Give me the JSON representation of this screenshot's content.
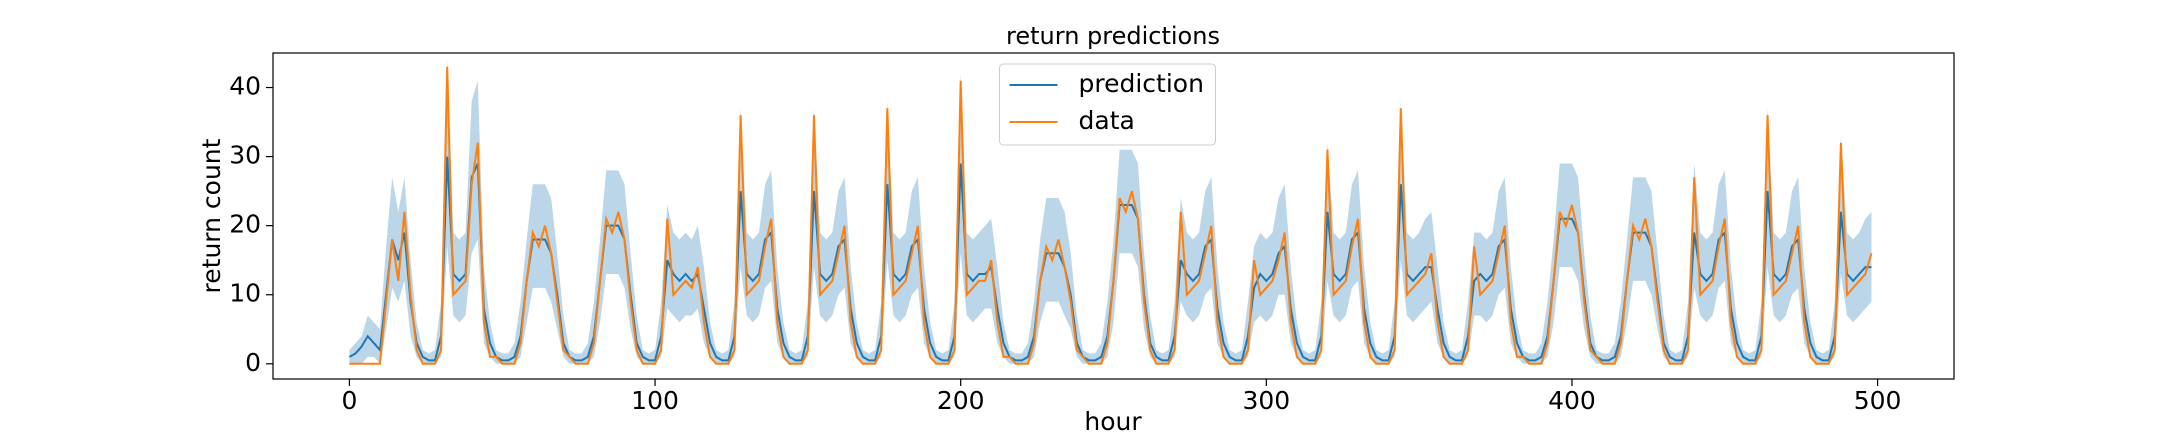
{
  "chart_data": {
    "type": "line",
    "title": "return predictions",
    "xlabel": "hour",
    "ylabel": "return count",
    "xlim": [
      -25,
      525
    ],
    "ylim": [
      -2.2,
      45
    ],
    "xticks": [
      0,
      100,
      200,
      300,
      400,
      500
    ],
    "yticks": [
      0,
      10,
      20,
      30,
      40
    ],
    "grid": false,
    "legend": "upper center",
    "x": [
      0,
      2,
      4,
      6,
      8,
      10,
      12,
      14,
      16,
      18,
      20,
      22,
      24,
      26,
      28,
      30,
      32,
      34,
      36,
      38,
      40,
      42,
      44,
      46,
      48,
      50,
      52,
      54,
      56,
      58,
      60,
      62,
      64,
      66,
      68,
      70,
      72,
      74,
      76,
      78,
      80,
      82,
      84,
      86,
      88,
      90,
      92,
      94,
      96,
      98,
      100,
      102,
      104,
      106,
      108,
      110,
      112,
      114,
      116,
      118,
      120,
      122,
      124,
      126,
      128,
      130,
      132,
      134,
      136,
      138,
      140,
      142,
      144,
      146,
      148,
      150,
      152,
      154,
      156,
      158,
      160,
      162,
      164,
      166,
      168,
      170,
      172,
      174,
      176,
      178,
      180,
      182,
      184,
      186,
      188,
      190,
      192,
      194,
      196,
      198,
      200,
      202,
      204,
      206,
      208,
      210,
      212,
      214,
      216,
      218,
      220,
      222,
      224,
      226,
      228,
      230,
      232,
      234,
      236,
      238,
      240,
      242,
      244,
      246,
      248,
      250,
      252,
      254,
      256,
      258,
      260,
      262,
      264,
      266,
      268,
      270,
      272,
      274,
      276,
      278,
      280,
      282,
      284,
      286,
      288,
      290,
      292,
      294,
      296,
      298,
      300,
      302,
      304,
      306,
      308,
      310,
      312,
      314,
      316,
      318,
      320,
      322,
      324,
      326,
      328,
      330,
      332,
      334,
      336,
      338,
      340,
      342,
      344,
      346,
      348,
      350,
      352,
      354,
      356,
      358,
      360,
      362,
      364,
      366,
      368,
      370,
      372,
      374,
      376,
      378,
      380,
      382,
      384,
      386,
      388,
      390,
      392,
      394,
      396,
      398,
      400,
      402,
      404,
      406,
      408,
      410,
      412,
      414,
      416,
      418,
      420,
      422,
      424,
      426,
      428,
      430,
      432,
      434,
      436,
      438,
      440,
      442,
      444,
      446,
      448,
      450,
      452,
      454,
      456,
      458,
      460,
      462,
      464,
      466,
      468,
      470,
      472,
      474,
      476,
      478,
      480,
      482,
      484,
      486,
      488,
      490,
      492,
      494,
      496,
      498
    ],
    "series": [
      {
        "name": "prediction",
        "color": "#1f77b4",
        "values": [
          1,
          1.5,
          2.5,
          4,
          3,
          2,
          10,
          18,
          15,
          19,
          9,
          3,
          1,
          0.5,
          0.5,
          4,
          30,
          13,
          12,
          13,
          27,
          29,
          8,
          3,
          1,
          0.5,
          0.5,
          1,
          4,
          12,
          18,
          18,
          18,
          16,
          10,
          3,
          1,
          0.5,
          0.5,
          1,
          4,
          12,
          20,
          20,
          20,
          18,
          10,
          3,
          1,
          0.5,
          0.5,
          4,
          15,
          13,
          12,
          13,
          12,
          13,
          8,
          3,
          1,
          0.5,
          0.5,
          4,
          25,
          13,
          12,
          13,
          18,
          19,
          8,
          3,
          1,
          0.5,
          0.5,
          4,
          25,
          13,
          12,
          13,
          17,
          18,
          8,
          3,
          1,
          0.5,
          0.5,
          4,
          26,
          13,
          12,
          13,
          17,
          18,
          8,
          3,
          1,
          0.5,
          0.5,
          4,
          29,
          13,
          12,
          13,
          13,
          14,
          8,
          3,
          1,
          0.5,
          0.5,
          1,
          4,
          12,
          16,
          16,
          16,
          14,
          10,
          3,
          1,
          0.5,
          0.5,
          1,
          4,
          12,
          23,
          23,
          23,
          21,
          10,
          3,
          1,
          0.5,
          0.5,
          4,
          15,
          13,
          12,
          13,
          17,
          18,
          8,
          3,
          1,
          0.5,
          0.5,
          4,
          11,
          13,
          12,
          13,
          16,
          17,
          8,
          3,
          1,
          0.5,
          0.5,
          4,
          22,
          13,
          12,
          13,
          18,
          19,
          8,
          3,
          1,
          0.5,
          0.5,
          4,
          26,
          13,
          12,
          13,
          14,
          14,
          8,
          3,
          1,
          0.5,
          0.5,
          4,
          12,
          13,
          12,
          13,
          17,
          18,
          8,
          3,
          1,
          0.5,
          0.5,
          1,
          4,
          12,
          21,
          21,
          21,
          19,
          10,
          3,
          1,
          0.5,
          0.5,
          1,
          4,
          12,
          19,
          19,
          19,
          17,
          10,
          3,
          1,
          0.5,
          0.5,
          4,
          19,
          13,
          12,
          13,
          18,
          19,
          8,
          3,
          1,
          0.5,
          0.5,
          4,
          25,
          13,
          12,
          13,
          17,
          18,
          8,
          3,
          1,
          0.5,
          0.5,
          4,
          22,
          13,
          12,
          13,
          14,
          14
        ],
        "band": {
          "color": "#1f77b4",
          "lower": [
            0,
            0,
            0,
            1,
            1,
            0,
            5,
            11,
            9,
            12,
            4,
            1,
            0,
            0,
            0,
            1,
            17,
            7,
            6,
            7,
            16,
            18,
            3,
            1,
            0,
            0,
            0,
            0,
            1,
            6,
            11,
            11,
            11,
            9,
            5,
            1,
            0,
            0,
            0,
            0,
            1,
            6,
            13,
            13,
            13,
            11,
            5,
            1,
            0,
            0,
            0,
            1,
            8,
            7,
            6,
            7,
            7,
            8,
            3,
            1,
            0,
            0,
            0,
            1,
            14,
            7,
            6,
            7,
            11,
            12,
            3,
            1,
            0,
            0,
            0,
            1,
            14,
            7,
            6,
            7,
            10,
            11,
            3,
            1,
            0,
            0,
            0,
            1,
            15,
            7,
            6,
            7,
            10,
            11,
            3,
            1,
            0,
            0,
            0,
            1,
            16,
            7,
            6,
            7,
            8,
            8,
            3,
            1,
            0,
            0,
            0,
            0,
            1,
            6,
            9,
            9,
            9,
            7,
            5,
            1,
            0,
            0,
            0,
            0,
            1,
            6,
            16,
            16,
            16,
            14,
            5,
            1,
            0,
            0,
            0,
            1,
            9,
            7,
            6,
            7,
            10,
            11,
            3,
            1,
            0,
            0,
            0,
            1,
            6,
            7,
            6,
            7,
            10,
            10,
            3,
            1,
            0,
            0,
            0,
            1,
            12,
            7,
            6,
            7,
            11,
            12,
            3,
            1,
            0,
            0,
            0,
            1,
            15,
            7,
            6,
            7,
            8,
            9,
            3,
            1,
            0,
            0,
            0,
            1,
            7,
            7,
            6,
            7,
            10,
            11,
            3,
            1,
            0,
            0,
            0,
            0,
            1,
            6,
            14,
            14,
            14,
            12,
            5,
            1,
            0,
            0,
            0,
            0,
            1,
            6,
            12,
            12,
            12,
            10,
            5,
            1,
            0,
            0,
            0,
            1,
            11,
            7,
            6,
            7,
            11,
            12,
            3,
            1,
            0,
            0,
            0,
            1,
            14,
            7,
            6,
            7,
            10,
            11,
            3,
            1,
            0,
            0,
            0,
            1,
            13,
            7,
            6,
            7,
            8,
            9
          ],
          "upper": [
            2,
            3,
            4,
            7,
            6,
            5,
            17,
            27,
            22,
            27,
            15,
            6,
            2,
            1.5,
            2,
            9,
            44,
            19,
            18,
            19,
            38,
            41,
            14,
            6,
            2,
            1.5,
            1.5,
            3,
            9,
            18,
            26,
            26,
            26,
            24,
            16,
            7,
            2,
            1.5,
            1.5,
            3,
            9,
            18,
            28,
            28,
            28,
            26,
            16,
            7,
            2,
            1.5,
            2,
            9,
            23,
            19,
            18,
            19,
            18,
            20,
            14,
            6,
            2,
            1.5,
            2,
            9,
            37,
            19,
            18,
            19,
            26,
            28,
            14,
            6,
            2,
            1.5,
            2,
            9,
            37,
            19,
            18,
            19,
            25,
            27,
            14,
            6,
            2,
            1.5,
            2,
            9,
            38,
            19,
            18,
            19,
            25,
            27,
            14,
            6,
            2,
            1.5,
            2,
            9,
            42,
            19,
            18,
            19,
            20,
            21,
            14,
            6,
            2,
            1.5,
            1.5,
            3,
            9,
            18,
            24,
            24,
            24,
            22,
            16,
            7,
            2,
            1.5,
            1.5,
            3,
            9,
            18,
            31,
            31,
            31,
            29,
            16,
            7,
            2,
            1.5,
            2,
            9,
            24,
            19,
            18,
            19,
            25,
            27,
            14,
            6,
            2,
            1.5,
            2,
            9,
            17,
            19,
            18,
            19,
            24,
            26,
            14,
            6,
            2,
            1.5,
            2,
            9,
            32,
            19,
            18,
            19,
            26,
            28,
            14,
            6,
            2,
            1.5,
            2,
            9,
            38,
            19,
            18,
            19,
            21,
            22,
            14,
            6,
            2,
            1.5,
            2,
            9,
            19,
            19,
            18,
            19,
            25,
            27,
            14,
            6,
            2,
            1.5,
            1.5,
            3,
            9,
            18,
            29,
            29,
            29,
            27,
            16,
            7,
            2,
            1.5,
            1.5,
            3,
            9,
            18,
            27,
            27,
            27,
            25,
            16,
            7,
            2,
            1.5,
            2,
            9,
            29,
            19,
            18,
            19,
            26,
            28,
            14,
            6,
            2,
            1.5,
            2,
            9,
            37,
            19,
            18,
            19,
            25,
            27,
            14,
            6,
            2,
            1.5,
            2,
            9,
            33,
            19,
            18,
            19,
            21,
            22
          ]
        }
      },
      {
        "name": "data",
        "color": "#ff7f0e",
        "values": [
          0,
          0,
          0,
          0,
          0,
          0,
          9,
          18,
          12,
          22,
          10,
          2,
          0,
          0,
          0,
          2,
          43,
          10,
          11,
          12,
          26,
          32,
          6,
          1,
          1,
          0,
          0,
          0,
          3,
          12,
          19,
          17,
          20,
          16,
          9,
          2,
          1,
          0,
          0,
          0,
          3,
          12,
          21,
          19,
          22,
          18,
          9,
          2,
          0,
          0,
          0,
          2,
          21,
          10,
          11,
          12,
          11,
          14,
          6,
          1,
          0,
          0,
          0,
          2,
          36,
          10,
          11,
          12,
          17,
          21,
          6,
          1,
          0,
          0,
          0,
          2,
          36,
          10,
          11,
          12,
          16,
          20,
          6,
          1,
          0,
          0,
          0,
          2,
          37,
          10,
          11,
          12,
          16,
          20,
          6,
          1,
          0,
          0,
          0,
          2,
          41,
          10,
          11,
          12,
          12,
          15,
          6,
          1,
          1,
          0,
          0,
          0,
          3,
          12,
          17,
          15,
          18,
          14,
          9,
          2,
          1,
          0,
          0,
          0,
          3,
          12,
          24,
          22,
          25,
          21,
          9,
          2,
          0,
          0,
          0,
          2,
          22,
          10,
          11,
          12,
          16,
          20,
          6,
          1,
          0,
          0,
          0,
          2,
          15,
          10,
          11,
          12,
          15,
          19,
          6,
          1,
          0,
          0,
          0,
          2,
          31,
          10,
          11,
          12,
          17,
          21,
          6,
          1,
          0,
          0,
          0,
          2,
          37,
          10,
          11,
          12,
          13,
          16,
          6,
          1,
          0,
          0,
          0,
          2,
          17,
          10,
          11,
          12,
          16,
          20,
          6,
          1,
          1,
          0,
          0,
          0,
          3,
          12,
          22,
          20,
          23,
          19,
          9,
          2,
          1,
          0,
          0,
          0,
          3,
          12,
          20,
          18,
          21,
          17,
          9,
          2,
          0,
          0,
          0,
          2,
          27,
          10,
          11,
          12,
          17,
          21,
          6,
          1,
          0,
          0,
          0,
          2,
          36,
          10,
          11,
          12,
          16,
          20,
          6,
          1,
          0,
          0,
          0,
          2,
          32,
          10,
          11,
          12,
          13,
          16
        ]
      }
    ]
  }
}
